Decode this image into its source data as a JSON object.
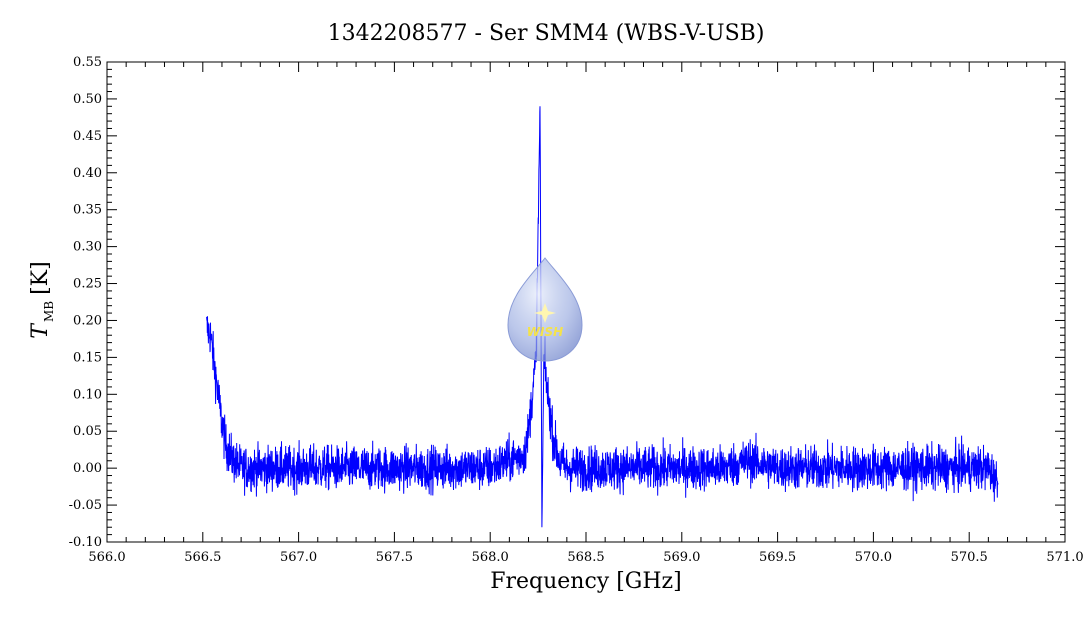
{
  "chart_data": {
    "type": "line",
    "title": "1342208577 - Ser SMM4 (WBS-V-USB)",
    "xlabel": "Frequency [GHz]",
    "ylabel_main": "T",
    "ylabel_sub": "MB",
    "ylabel_unit": "[K]",
    "xlim": [
      566.0,
      571.0
    ],
    "ylim": [
      -0.1,
      0.55
    ],
    "x_ticks": [
      "566.0",
      "566.5",
      "567.0",
      "567.5",
      "568.0",
      "568.5",
      "569.0",
      "569.5",
      "570.0",
      "570.5",
      "571.0"
    ],
    "y_ticks": [
      "-0.10",
      "-0.05",
      "0.00",
      "0.05",
      "0.10",
      "0.15",
      "0.20",
      "0.25",
      "0.30",
      "0.35",
      "0.40",
      "0.45",
      "0.50",
      "0.55"
    ],
    "series": [
      {
        "color": "#0000ff",
        "x": [
          566.52,
          566.54,
          566.56,
          566.58,
          566.6,
          566.62,
          566.64,
          566.66,
          566.7,
          566.8,
          566.9,
          567.0,
          567.2,
          567.4,
          567.6,
          567.8,
          568.0,
          568.1,
          568.18,
          568.2,
          568.22,
          568.24,
          568.26,
          568.27,
          568.28,
          568.3,
          568.33,
          568.36,
          568.4,
          568.6,
          568.8,
          569.0,
          569.2,
          569.35,
          569.5,
          569.7,
          569.9,
          570.1,
          570.3,
          570.5,
          570.6,
          570.65
        ],
        "y": [
          0.19,
          0.18,
          0.14,
          0.1,
          0.06,
          0.03,
          0.02,
          0.01,
          0.0,
          0.0,
          0.0,
          0.0,
          0.0,
          0.0,
          0.0,
          0.0,
          0.0,
          0.01,
          0.02,
          0.05,
          0.1,
          0.15,
          0.49,
          -0.08,
          0.15,
          0.1,
          0.04,
          0.01,
          0.0,
          0.0,
          0.0,
          0.0,
          0.0,
          0.01,
          0.0,
          0.0,
          0.0,
          0.0,
          0.0,
          0.0,
          0.0,
          -0.02
        ],
        "noise_rms": 0.015
      }
    ]
  },
  "logo": {
    "text": "WISH"
  }
}
